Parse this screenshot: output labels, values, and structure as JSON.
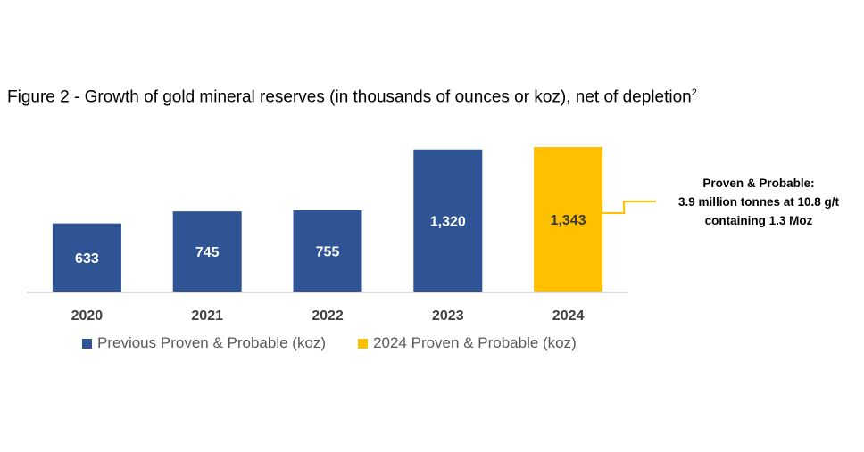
{
  "title": {
    "text": "Figure 2 - Growth of gold mineral reserves (in thousands of ounces or koz), net of depletion",
    "footnote": "2"
  },
  "chart_data": {
    "type": "bar",
    "categories": [
      "2020",
      "2021",
      "2022",
      "2023",
      "2024"
    ],
    "values": [
      633,
      745,
      755,
      1320,
      1343
    ],
    "value_labels": [
      "633",
      "745",
      "755",
      "1,320",
      "1,343"
    ],
    "series": [
      {
        "name": "Previous Proven & Probable (koz)",
        "color": "#2F5496",
        "values": [
          633,
          745,
          755,
          1320,
          null
        ]
      },
      {
        "name": "2024 Proven & Probable (koz)",
        "color": "#FFC000",
        "values": [
          null,
          null,
          null,
          null,
          1343
        ]
      }
    ],
    "xlabel": "",
    "ylabel": "",
    "ylim": [
      0,
      1343
    ],
    "grid": false,
    "legend_position": "bottom"
  },
  "callout": {
    "line1": "Proven & Probable:",
    "line2": "3.9 million tonnes at 10.8 g/t",
    "line3": "containing 1.3 Moz",
    "color": "#FFC000"
  },
  "colors": {
    "label_dark": "#FFFFFF",
    "label_light": "#3A3A3A",
    "axis": "#D9D9D9",
    "category_text": "#404040"
  }
}
